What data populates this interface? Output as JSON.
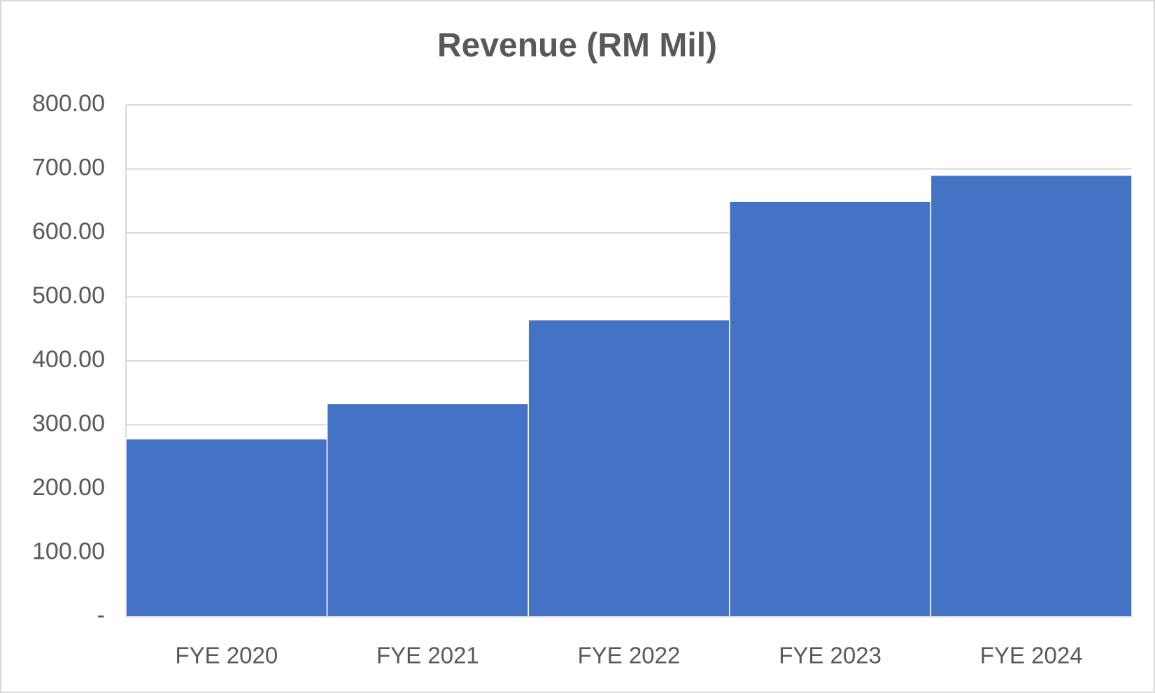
{
  "chart_data": {
    "type": "bar",
    "title": "Revenue (RM Mil)",
    "categories": [
      "FYE 2020",
      "FYE 2021",
      "FYE 2022",
      "FYE 2023",
      "FYE 2024"
    ],
    "values": [
      278,
      333,
      464,
      649,
      690
    ],
    "color": "#4472c4",
    "ylim": [
      0,
      800
    ],
    "yticks": [
      {
        "value": 0,
        "label": "-"
      },
      {
        "value": 100,
        "label": "100.00"
      },
      {
        "value": 200,
        "label": "200.00"
      },
      {
        "value": 300,
        "label": "300.00"
      },
      {
        "value": 400,
        "label": "400.00"
      },
      {
        "value": 500,
        "label": "500.00"
      },
      {
        "value": 600,
        "label": "600.00"
      },
      {
        "value": 700,
        "label": "700.00"
      },
      {
        "value": 800,
        "label": "800.00"
      }
    ],
    "grid": true
  }
}
